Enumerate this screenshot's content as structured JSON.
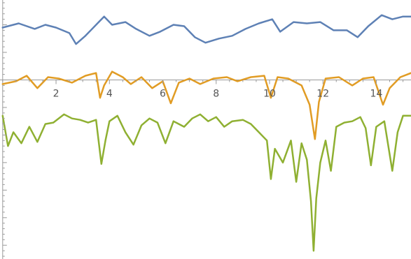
{
  "chart_data": {
    "type": "line",
    "title": "",
    "xlabel": "",
    "ylabel": "",
    "xlim": [
      -0.1,
      15.3
    ],
    "ylim": [
      -6.5,
      2.9
    ],
    "x_ticks": [
      2,
      4,
      6,
      8,
      10,
      12,
      14
    ],
    "x_tick_labels": [
      "2",
      "4",
      "6",
      "8",
      "10",
      "12",
      "14"
    ],
    "y_ticks": [
      1,
      0,
      -1,
      -2,
      -3,
      -4,
      -5,
      -6
    ],
    "grid": false,
    "legend": "none",
    "series": [
      {
        "color": "#5E81B5",
        "points": [
          [
            0,
            1.9
          ],
          [
            0.6,
            2.05
          ],
          [
            1.2,
            1.85
          ],
          [
            1.6,
            2.0
          ],
          [
            2.0,
            1.9
          ],
          [
            2.5,
            1.7
          ],
          [
            2.75,
            1.3
          ],
          [
            3.1,
            1.6
          ],
          [
            3.6,
            2.1
          ],
          [
            3.8,
            2.3
          ],
          [
            4.1,
            2.0
          ],
          [
            4.6,
            2.1
          ],
          [
            5.0,
            1.85
          ],
          [
            5.5,
            1.6
          ],
          [
            5.9,
            1.75
          ],
          [
            6.4,
            2.0
          ],
          [
            6.8,
            1.95
          ],
          [
            7.2,
            1.55
          ],
          [
            7.6,
            1.35
          ],
          [
            8.1,
            1.5
          ],
          [
            8.6,
            1.6
          ],
          [
            9.1,
            1.85
          ],
          [
            9.6,
            2.05
          ],
          [
            10.1,
            2.2
          ],
          [
            10.4,
            1.75
          ],
          [
            10.9,
            2.1
          ],
          [
            11.4,
            2.05
          ],
          [
            11.9,
            2.1
          ],
          [
            12.4,
            1.8
          ],
          [
            12.9,
            1.8
          ],
          [
            13.3,
            1.55
          ],
          [
            13.7,
            1.95
          ],
          [
            14.2,
            2.35
          ],
          [
            14.6,
            2.2
          ],
          [
            15.0,
            2.3
          ],
          [
            15.3,
            2.3
          ]
        ]
      },
      {
        "color": "#E19C24",
        "points": [
          [
            0,
            -0.15
          ],
          [
            0.5,
            -0.05
          ],
          [
            0.9,
            0.15
          ],
          [
            1.3,
            -0.3
          ],
          [
            1.7,
            0.1
          ],
          [
            2.1,
            0.05
          ],
          [
            2.6,
            -0.1
          ],
          [
            3.1,
            0.15
          ],
          [
            3.5,
            0.25
          ],
          [
            3.65,
            -0.65
          ],
          [
            3.8,
            -0.2
          ],
          [
            4.1,
            0.3
          ],
          [
            4.5,
            0.1
          ],
          [
            4.8,
            -0.15
          ],
          [
            5.2,
            0.1
          ],
          [
            5.6,
            -0.3
          ],
          [
            6.0,
            -0.05
          ],
          [
            6.3,
            -0.85
          ],
          [
            6.6,
            -0.1
          ],
          [
            7.0,
            0.05
          ],
          [
            7.4,
            -0.15
          ],
          [
            7.9,
            0.05
          ],
          [
            8.4,
            0.1
          ],
          [
            8.8,
            -0.05
          ],
          [
            9.3,
            0.1
          ],
          [
            9.8,
            0.15
          ],
          [
            10.05,
            -0.65
          ],
          [
            10.3,
            0.1
          ],
          [
            10.7,
            0.05
          ],
          [
            11.2,
            -0.2
          ],
          [
            11.5,
            -0.9
          ],
          [
            11.7,
            -2.15
          ],
          [
            11.85,
            -0.8
          ],
          [
            12.1,
            0.05
          ],
          [
            12.6,
            0.1
          ],
          [
            13.1,
            -0.2
          ],
          [
            13.5,
            0.05
          ],
          [
            13.9,
            0.1
          ],
          [
            14.25,
            -0.9
          ],
          [
            14.5,
            -0.3
          ],
          [
            14.9,
            0.1
          ],
          [
            15.3,
            0.25
          ]
        ]
      },
      {
        "color": "#8FB032",
        "points": [
          [
            0,
            -1.3
          ],
          [
            0.2,
            -2.4
          ],
          [
            0.4,
            -1.9
          ],
          [
            0.7,
            -2.3
          ],
          [
            1.0,
            -1.7
          ],
          [
            1.3,
            -2.25
          ],
          [
            1.6,
            -1.6
          ],
          [
            1.9,
            -1.55
          ],
          [
            2.3,
            -1.25
          ],
          [
            2.6,
            -1.4
          ],
          [
            2.9,
            -1.45
          ],
          [
            3.2,
            -1.55
          ],
          [
            3.5,
            -1.45
          ],
          [
            3.7,
            -3.05
          ],
          [
            3.85,
            -2.2
          ],
          [
            4.0,
            -1.5
          ],
          [
            4.3,
            -1.3
          ],
          [
            4.6,
            -1.9
          ],
          [
            4.9,
            -2.35
          ],
          [
            5.2,
            -1.65
          ],
          [
            5.5,
            -1.4
          ],
          [
            5.8,
            -1.55
          ],
          [
            6.1,
            -2.3
          ],
          [
            6.4,
            -1.5
          ],
          [
            6.8,
            -1.7
          ],
          [
            7.1,
            -1.4
          ],
          [
            7.4,
            -1.25
          ],
          [
            7.7,
            -1.5
          ],
          [
            8.0,
            -1.35
          ],
          [
            8.3,
            -1.7
          ],
          [
            8.6,
            -1.5
          ],
          [
            9.0,
            -1.45
          ],
          [
            9.3,
            -1.6
          ],
          [
            9.6,
            -1.9
          ],
          [
            9.9,
            -2.2
          ],
          [
            10.05,
            -3.6
          ],
          [
            10.2,
            -2.5
          ],
          [
            10.5,
            -3.0
          ],
          [
            10.8,
            -2.2
          ],
          [
            11.0,
            -3.7
          ],
          [
            11.2,
            -2.3
          ],
          [
            11.4,
            -2.9
          ],
          [
            11.55,
            -4.4
          ],
          [
            11.65,
            -6.2
          ],
          [
            11.75,
            -4.3
          ],
          [
            11.9,
            -3.0
          ],
          [
            12.1,
            -2.2
          ],
          [
            12.3,
            -3.3
          ],
          [
            12.5,
            -1.7
          ],
          [
            12.8,
            -1.55
          ],
          [
            13.1,
            -1.5
          ],
          [
            13.4,
            -1.35
          ],
          [
            13.6,
            -1.75
          ],
          [
            13.8,
            -3.1
          ],
          [
            14.0,
            -1.7
          ],
          [
            14.3,
            -1.5
          ],
          [
            14.6,
            -3.3
          ],
          [
            14.8,
            -1.9
          ],
          [
            15.0,
            -1.3
          ],
          [
            15.3,
            -1.3
          ]
        ]
      }
    ]
  }
}
